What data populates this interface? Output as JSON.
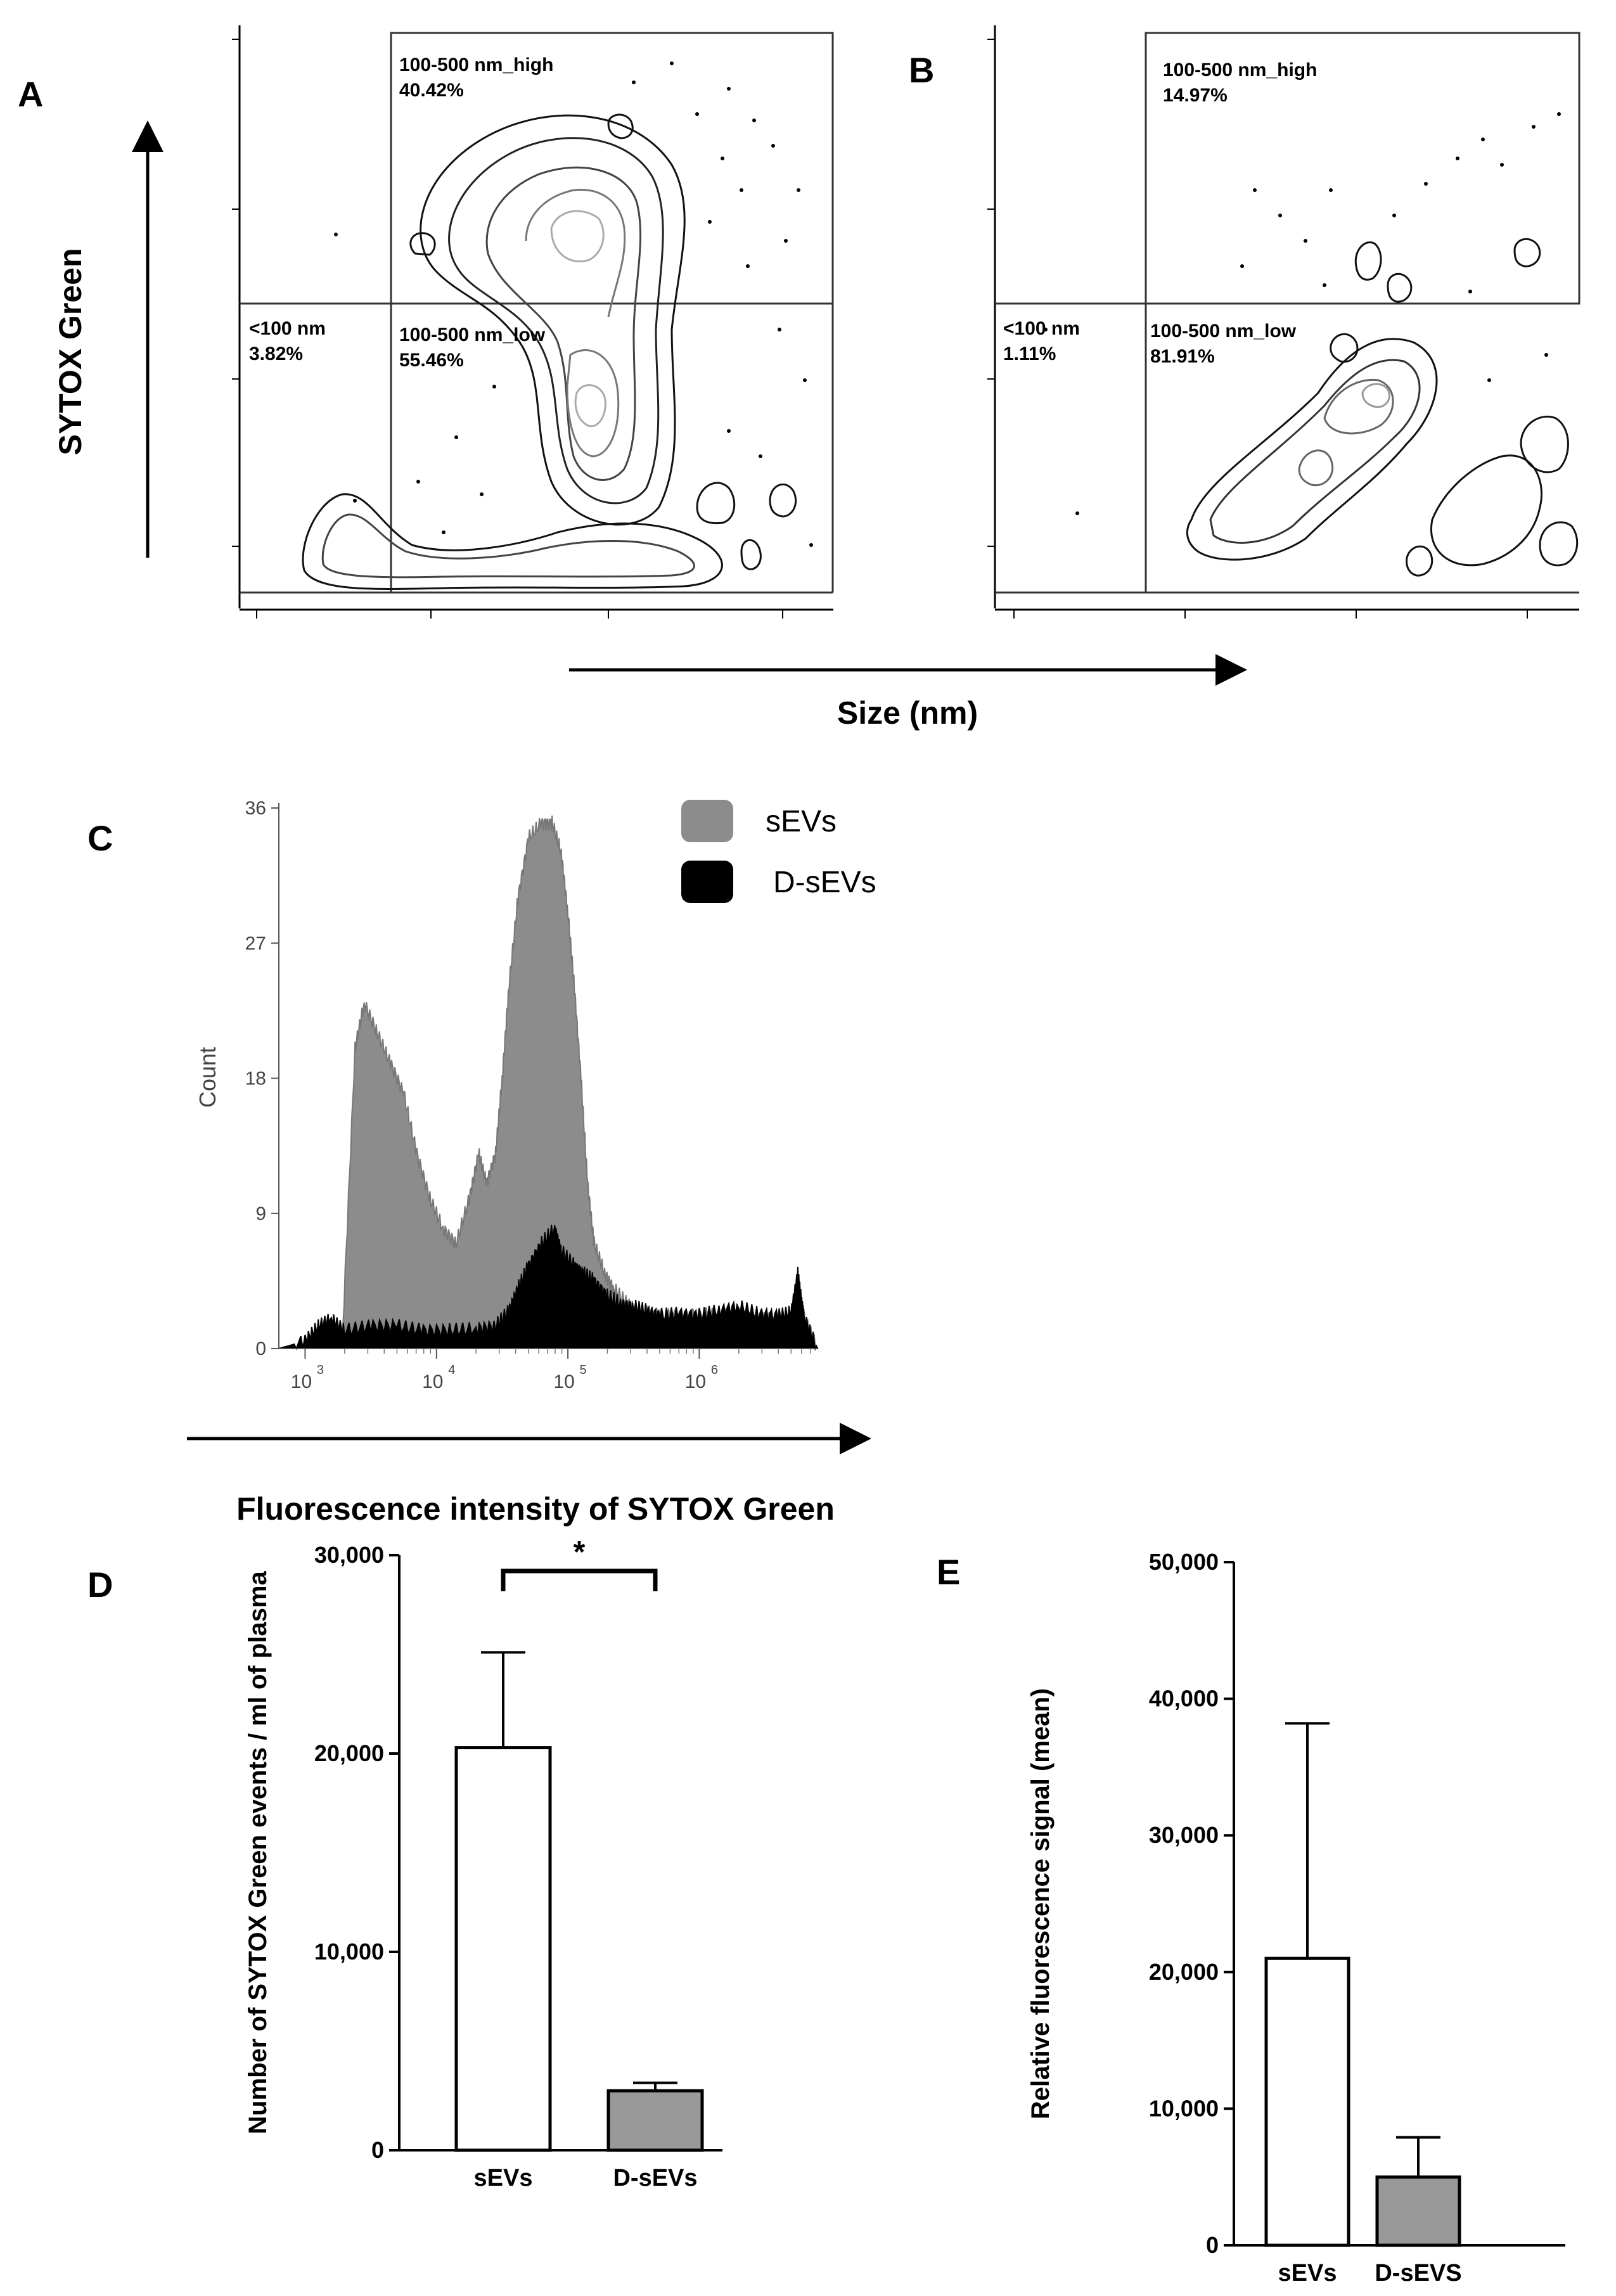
{
  "panel_labels": {
    "A": "A",
    "B": "B",
    "C": "C",
    "D": "D",
    "E": "E"
  },
  "top_axis": {
    "y_title": "SYTOX Green",
    "x_title": "Size (nm)"
  },
  "chart_data": [
    {
      "panel": "A",
      "type": "scatter",
      "title": "",
      "gates": [
        {
          "name": "100-500 nm_high",
          "pct": "40.42%"
        },
        {
          "name": "<100 nm",
          "pct": "3.82%"
        },
        {
          "name": "100-500 nm_low",
          "pct": "55.46%"
        }
      ]
    },
    {
      "panel": "B",
      "type": "scatter",
      "title": "",
      "gates": [
        {
          "name": "100-500 nm_high",
          "pct": "14.97%"
        },
        {
          "name": "<100 nm",
          "pct": "1.11%"
        },
        {
          "name": "100-500 nm_low",
          "pct": "81.91%"
        }
      ]
    },
    {
      "panel": "C",
      "type": "area",
      "xlabel": "Fluorescence intensity of SYTOX Green",
      "ylabel": "Count",
      "ylim": [
        0,
        36
      ],
      "xlim_log10": [
        2.8,
        6.9
      ],
      "y_ticks": [
        "0",
        "9",
        "18",
        "27",
        "36"
      ],
      "x_ticks": [
        {
          "base": "10",
          "exp": "3",
          "log": 3
        },
        {
          "base": "10",
          "exp": "4",
          "log": 4
        },
        {
          "base": "10",
          "exp": "5",
          "log": 5
        },
        {
          "base": "10",
          "exp": "6",
          "log": 6
        }
      ],
      "legend": [
        "sEVs",
        "D-sEVs"
      ],
      "colors": {
        "sEVs": "#8c8c8c",
        "D-sEVs": "#000000"
      },
      "series": [
        {
          "name": "sEVs",
          "x_log10": [
            2.8,
            3.28,
            3.38,
            3.45,
            3.55,
            3.65,
            3.75,
            3.85,
            3.95,
            4.05,
            4.15,
            4.25,
            4.32,
            4.38,
            4.45,
            4.5,
            4.55,
            4.62,
            4.7,
            4.8,
            4.88,
            4.95,
            5.0,
            5.05,
            5.1,
            5.15,
            5.2,
            5.28,
            5.35,
            5.45,
            5.55,
            5.7,
            5.9,
            6.1,
            6.3,
            6.5,
            6.7,
            6.75,
            6.78,
            6.8,
            6.9
          ],
          "values": [
            0,
            0,
            20,
            23,
            21,
            19,
            17,
            13,
            10,
            8,
            7,
            10,
            13,
            11,
            13,
            18,
            24,
            30,
            34,
            35,
            35,
            33,
            29,
            24,
            18,
            11,
            7,
            5,
            4,
            3,
            2.5,
            2.2,
            2.2,
            2.3,
            2,
            2,
            2,
            4.5,
            3,
            2,
            0
          ]
        },
        {
          "name": "D-sEVs",
          "x_log10": [
            2.8,
            3.0,
            3.1,
            3.2,
            3.3,
            3.5,
            3.7,
            3.9,
            4.1,
            4.3,
            4.45,
            4.55,
            4.62,
            4.7,
            4.8,
            4.9,
            4.95,
            5.05,
            5.12,
            5.2,
            5.3,
            5.4,
            5.5,
            5.6,
            5.7,
            5.85,
            6.0,
            6.15,
            6.3,
            6.45,
            6.6,
            6.7,
            6.75,
            6.78,
            6.8,
            6.9
          ],
          "values": [
            0,
            0.5,
            1.5,
            2,
            1.2,
            1.5,
            1.5,
            1.2,
            1.2,
            1.3,
            1.5,
            2.5,
            4,
            5.5,
            7,
            8,
            6.5,
            5.5,
            5,
            4.5,
            3.5,
            3,
            2.8,
            2.5,
            2.2,
            2.3,
            2.2,
            2.5,
            2.8,
            2.3,
            2.2,
            2.4,
            5,
            3,
            2,
            0
          ]
        }
      ]
    },
    {
      "panel": "D",
      "type": "bar",
      "ylabel": "Number of SYTOX Green events / ml of plasma",
      "ylim": [
        0,
        30000
      ],
      "y_ticks": [
        "0",
        "10,000",
        "20,000",
        "30,000"
      ],
      "categories": [
        "sEVs",
        "D-sEVs"
      ],
      "values": [
        20300,
        3000
      ],
      "errors": [
        4800,
        400
      ],
      "fills": [
        "#ffffff",
        "#999999"
      ],
      "significance": "*"
    },
    {
      "panel": "E",
      "type": "bar",
      "ylabel": "Relative fluorescence signal (mean)",
      "ylim": [
        0,
        50000
      ],
      "y_ticks": [
        "0",
        "10,000",
        "20,000",
        "30,000",
        "40,000",
        "50,000"
      ],
      "categories": [
        "sEVs",
        "D-sEVS"
      ],
      "values": [
        21000,
        5000
      ],
      "errors": [
        17200,
        2900
      ],
      "fills": [
        "#ffffff",
        "#999999"
      ]
    }
  ]
}
